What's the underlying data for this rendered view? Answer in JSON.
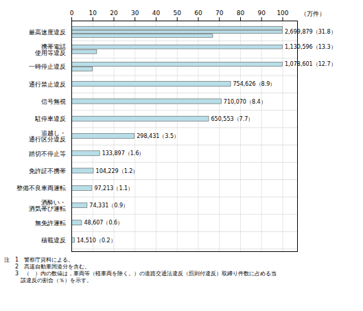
{
  "chart_data": {
    "type": "bar",
    "orientation": "horizontal",
    "categories": [
      "最高速度違反",
      "携帯電話\n使用等違反",
      "一時停止違反",
      "通行禁止違反",
      "信号無視",
      "駐停車違反",
      "追越し・\n通行区分違反",
      "踏切不停止等",
      "免許証不携帯",
      "整備不良車両運転",
      "酒酔い・\n酒気帯び運転",
      "無免許運転",
      "積載違反"
    ],
    "values": [
      [
        100.0,
        100.0,
        67.0
      ],
      [
        100.0,
        12.0
      ],
      [
        100.0,
        10.0
      ],
      [
        75.4626
      ],
      [
        71.007
      ],
      [
        65.0553
      ],
      [
        29.8431
      ],
      [
        13.3897
      ],
      [
        10.4229
      ],
      [
        9.7213
      ],
      [
        7.4331
      ],
      [
        4.8607
      ],
      [
        1.451
      ]
    ],
    "value_labels": [
      "2,699,879（31.8）",
      "1,130,596（13.3）",
      "1,078,601（12.7）",
      "754,626（8.9）",
      "710,070（8.4）",
      "650,553（7.7）",
      "298,431（3.5）",
      "133,897（1.6）",
      "104,229（1.2）",
      "97,213（1.1）",
      "74,331（0.9）",
      "48,607（0.6）",
      "14,510（0.2）"
    ],
    "data_labels": true,
    "xlabel": "（万件）",
    "xlim": [
      0,
      107
    ],
    "xticks": [
      0,
      10,
      20,
      30,
      40,
      50,
      60,
      70,
      80,
      90,
      100
    ],
    "grid": true,
    "color": "#B8DEE8",
    "notes": [
      "注　1　警察庁資料による。",
      "　　2　高速自動車国道分を含む。",
      "　　3　（　）内の数値は，車両等（軽車両を除く。）の道路交通法違反（罰則付違反）取締り件数に占める当",
      "　　　該違反の割合（％）を示す。"
    ]
  }
}
